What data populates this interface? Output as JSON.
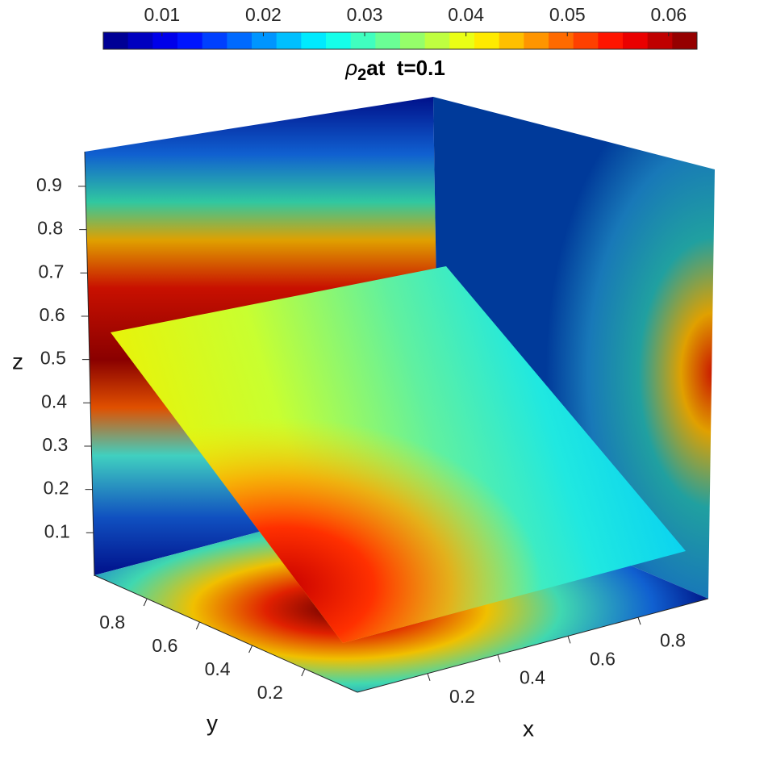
{
  "chart_data": {
    "type": "slice",
    "title": {
      "symbol": "ρ",
      "subscript": "2",
      "text": "at  t=0.1"
    },
    "colorbar": {
      "colormap": "jet",
      "levels": 24,
      "lim": [
        0.0042,
        0.0628
      ],
      "ticks": [
        0.01,
        0.02,
        0.03,
        0.04,
        0.05,
        0.06
      ]
    },
    "xlabel": "x",
    "ylabel": "y",
    "zlabel": "z",
    "xlim": [
      0,
      1
    ],
    "ylim": [
      0,
      1
    ],
    "zlim": [
      0,
      0.98
    ],
    "xticks": [
      0.2,
      0.4,
      0.6,
      0.8
    ],
    "yticks": [
      0.2,
      0.4,
      0.6,
      0.8
    ],
    "zticks": [
      0.1,
      0.2,
      0.3,
      0.4,
      0.5,
      0.6,
      0.7,
      0.8,
      0.9
    ]
  }
}
